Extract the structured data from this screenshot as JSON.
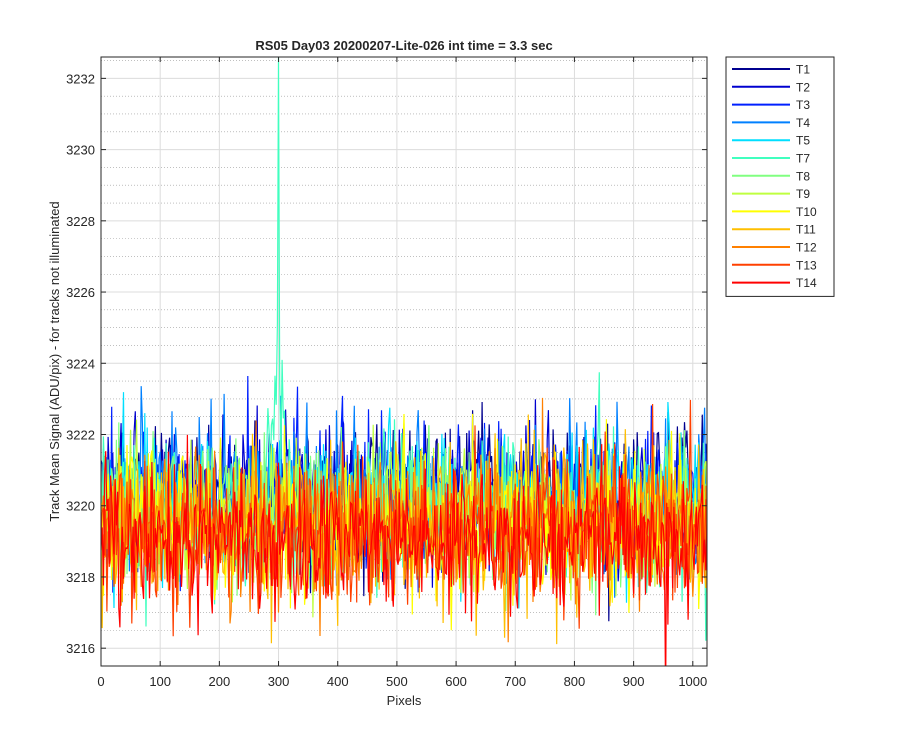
{
  "chart_data": {
    "type": "line",
    "title": "RS05 Day03 20200207-Lite-026 int time = 3.3 sec",
    "xlabel": "Pixels",
    "ylabel": "Track Mean Signal (ADU/pix) - for tracks not illuminated",
    "xlim": [
      0,
      1024
    ],
    "ylim": [
      3215.5,
      3232.6
    ],
    "x_ticks": [
      "0",
      "100",
      "200",
      "300",
      "400",
      "500",
      "600",
      "700",
      "800",
      "900",
      "1000"
    ],
    "y_ticks": [
      "3216",
      "3218",
      "3220",
      "3222",
      "3224",
      "3226",
      "3228",
      "3230",
      "3232"
    ],
    "x_tick_values": [
      0,
      100,
      200,
      300,
      400,
      500,
      600,
      700,
      800,
      900,
      1000
    ],
    "y_tick_values": [
      3216,
      3218,
      3220,
      3222,
      3224,
      3226,
      3228,
      3230,
      3232
    ],
    "y_minor_step": 0.5,
    "grid": true,
    "minor_grid": true,
    "legend_position": "outside-right-top",
    "series": [
      {
        "name": "T1",
        "color": "#00008F",
        "mean": 3220.4,
        "spread": 1.0
      },
      {
        "name": "T2",
        "color": "#0000CF",
        "mean": 3220.3,
        "spread": 1.0
      },
      {
        "name": "T3",
        "color": "#0020FF",
        "mean": 3220.2,
        "spread": 1.0
      },
      {
        "name": "T4",
        "color": "#0080FF",
        "mean": 3220.1,
        "spread": 1.0
      },
      {
        "name": "T5",
        "color": "#00DFFF",
        "mean": 3220.0,
        "spread": 1.0
      },
      {
        "name": "T7",
        "color": "#40FFBF",
        "mean": 3219.9,
        "spread": 1.0,
        "peak_pixel": 300,
        "peak_value": 3232.6
      },
      {
        "name": "T8",
        "color": "#80FF80",
        "mean": 3219.8,
        "spread": 1.0
      },
      {
        "name": "T9",
        "color": "#BFFF40",
        "mean": 3219.7,
        "spread": 1.0
      },
      {
        "name": "T10",
        "color": "#FFFF00",
        "mean": 3219.6,
        "spread": 1.0
      },
      {
        "name": "T11",
        "color": "#FFBF00",
        "mean": 3219.4,
        "spread": 1.0
      },
      {
        "name": "T12",
        "color": "#FF8000",
        "mean": 3219.3,
        "spread": 1.0
      },
      {
        "name": "T13",
        "color": "#FF4000",
        "mean": 3219.2,
        "spread": 1.0
      },
      {
        "name": "T14",
        "color": "#FF0000",
        "mean": 3219.1,
        "spread": 1.0
      }
    ]
  }
}
